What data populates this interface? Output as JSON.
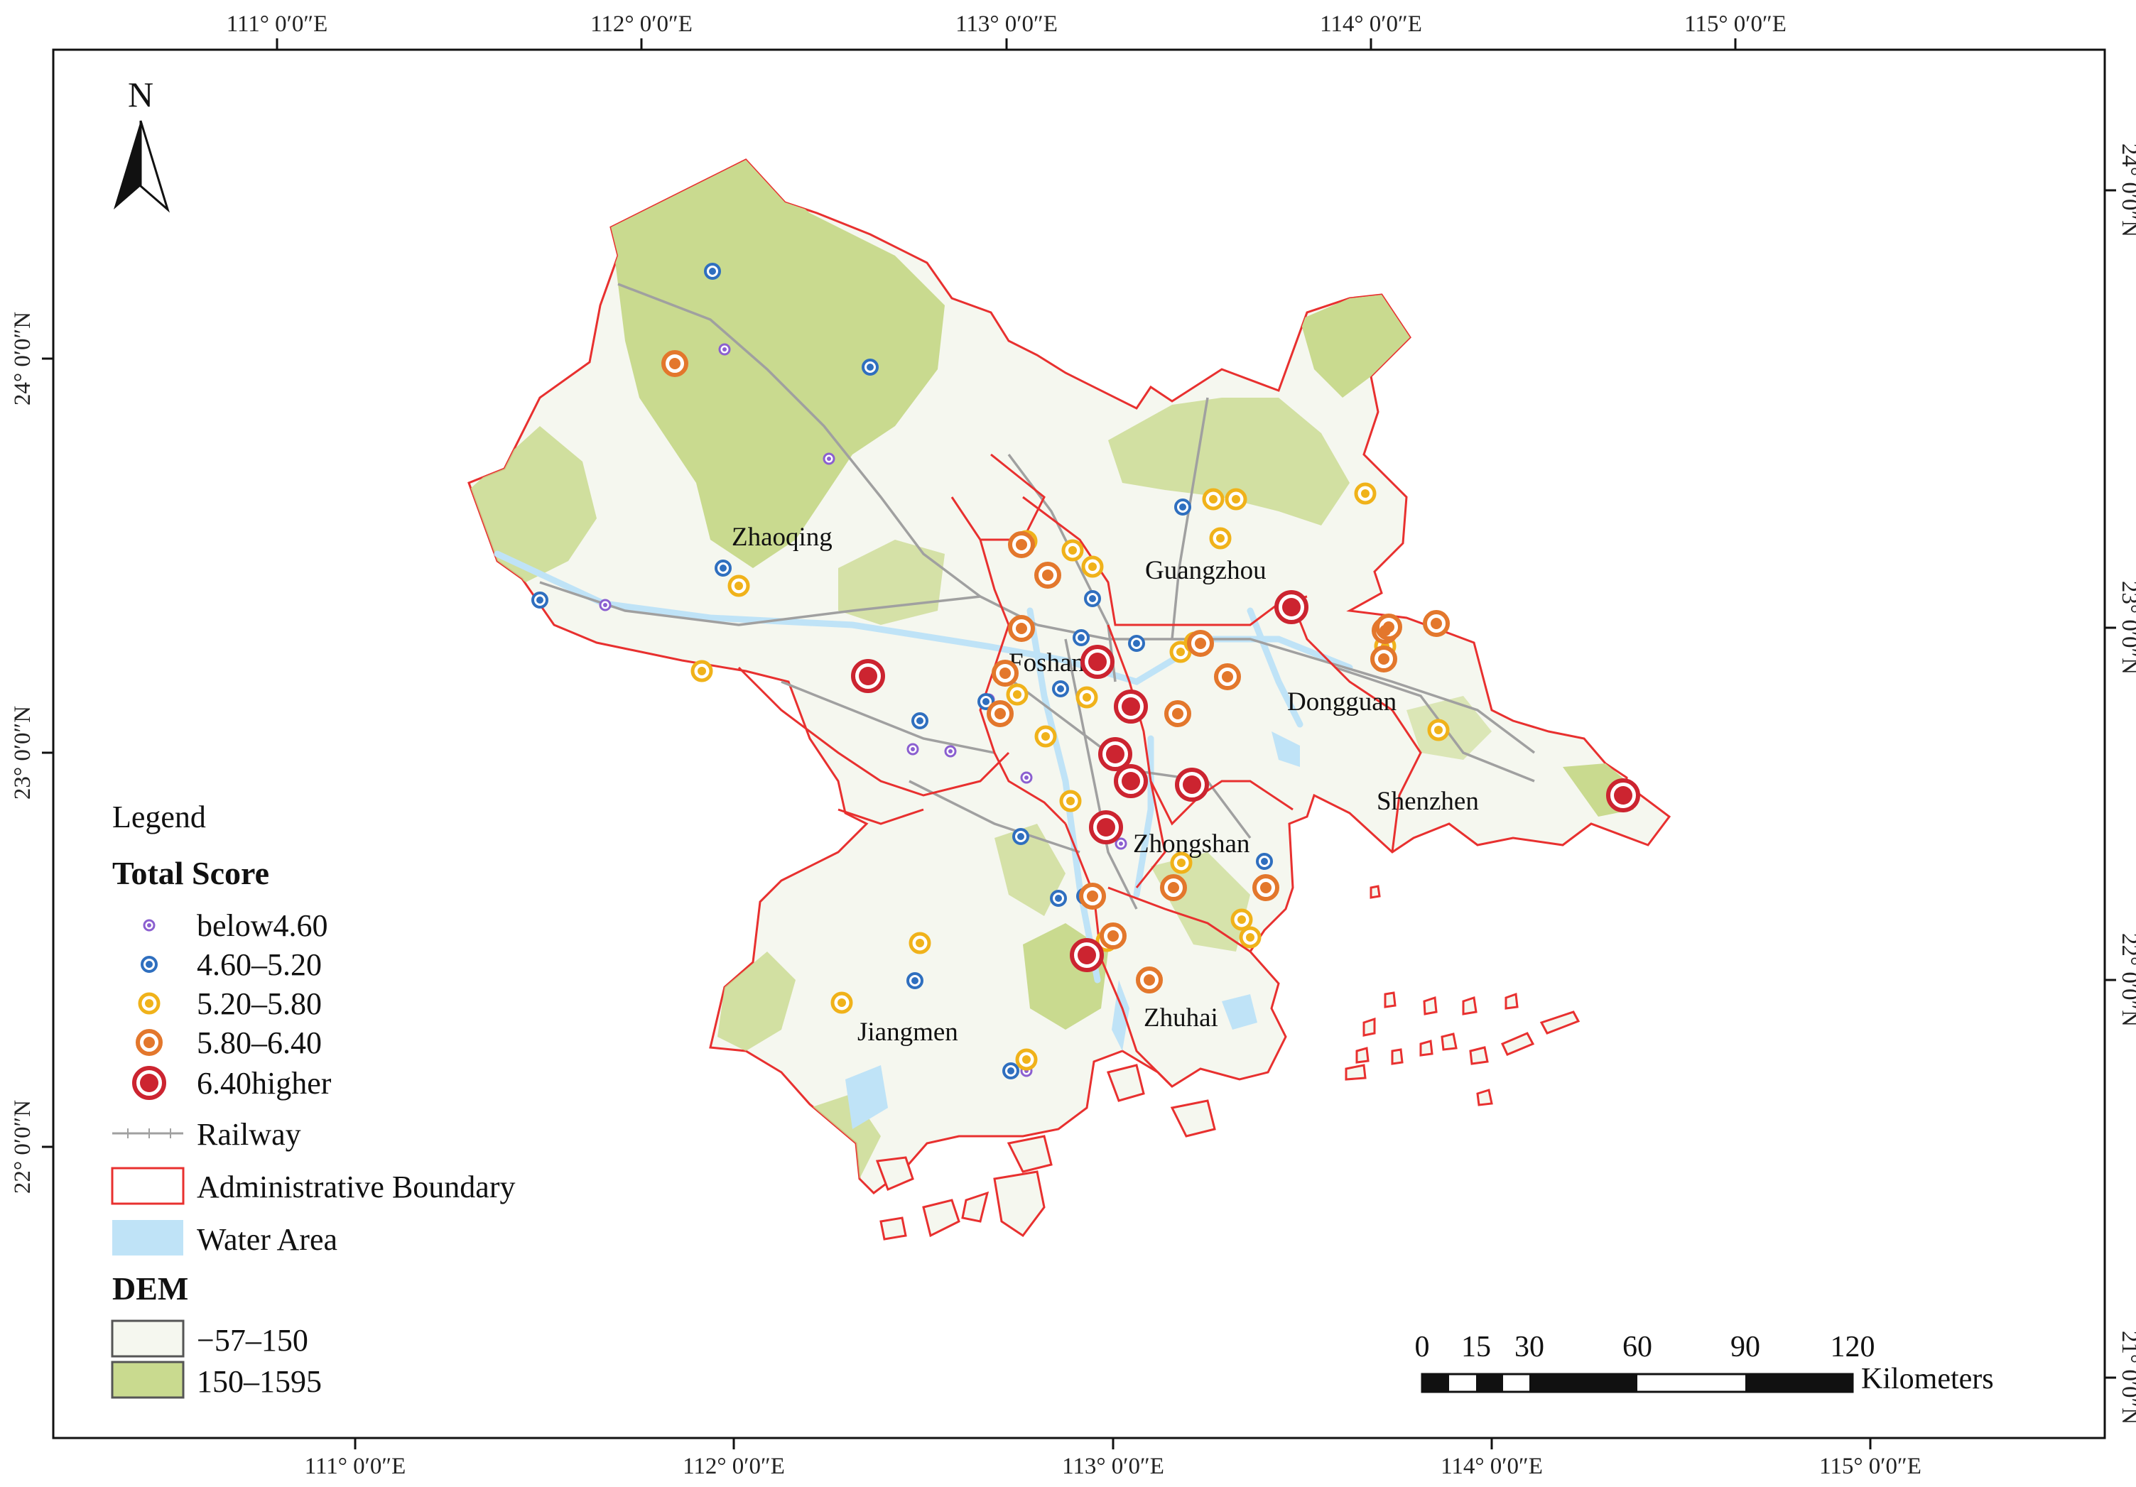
{
  "map": {
    "top_ticks": [
      "111° 0′0″E",
      "112° 0′0″E",
      "113° 0′0″E",
      "114° 0′0″E",
      "115° 0′0″E"
    ],
    "bottom_ticks": [
      "111° 0′0″E",
      "112° 0′0″E",
      "113° 0′0″E",
      "114° 0′0″E",
      "115° 0′0″E"
    ],
    "left_ticks": [
      "24° 0′0″N",
      "23° 0′0″N",
      "22° 0′0″N"
    ],
    "right_ticks": [
      "24° 0′0″N",
      "23° 0′0″N",
      "22° 0′0″N",
      "21° 0′0″N"
    ],
    "north_label": "N",
    "cities": [
      "Zhaoqing",
      "Guangzhou",
      "Foshan",
      "Dongguan",
      "Shenzhen",
      "Zhongshan",
      "Jiangmen",
      "Zhuhai"
    ],
    "colors": {
      "boundary": "#e8302f",
      "land_low": "#f5f7ef",
      "land_high": "#c9da8f",
      "water": "#bfe3f7",
      "railway": "#a0a0a0",
      "below": "#8b5fd0",
      "c2": "#2f6fbf",
      "c3": "#f0b21a",
      "c4": "#e3772c",
      "c5": "#cc2430"
    }
  },
  "legend": {
    "title": "Legend",
    "score_title": "Total Score",
    "score_classes": [
      "below4.60",
      "4.60–5.20",
      "5.20–5.80",
      "5.80–6.40",
      "6.40higher"
    ],
    "railway": "Railway",
    "admin": "Administrative Boundary",
    "water": "Water Area",
    "dem_title": "DEM",
    "dem_low": "−57–150",
    "dem_high": "150–1595"
  },
  "scale_bar": {
    "labels": [
      "0",
      "15",
      "30",
      "60",
      "90",
      "120"
    ],
    "unit": "Kilometers"
  }
}
